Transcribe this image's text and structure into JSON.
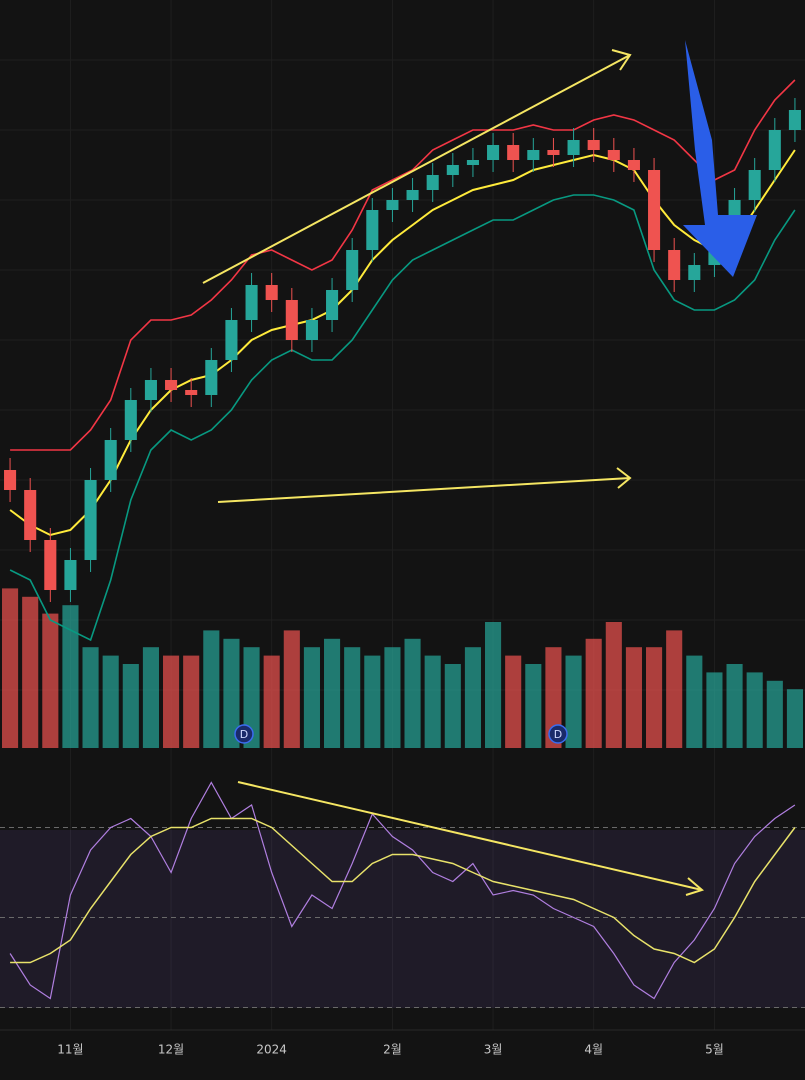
{
  "chart_data": [
    {
      "type": "candlestick",
      "categories": [
        null,
        null,
        null,
        "11월",
        null,
        null,
        null,
        null,
        "12월",
        null,
        null,
        null,
        null,
        "2024",
        null,
        null,
        null,
        null,
        null,
        "2월",
        null,
        null,
        null,
        null,
        "3월",
        null,
        null,
        null,
        null,
        "4월",
        null,
        null,
        null,
        null,
        null,
        "5월",
        null,
        null,
        null,
        null
      ],
      "open": [
        130,
        110,
        60,
        10,
        40,
        120,
        160,
        200,
        220,
        210,
        205,
        240,
        280,
        315,
        300,
        260,
        280,
        310,
        350,
        390,
        400,
        410,
        425,
        435,
        440,
        455,
        440,
        450,
        445,
        460,
        450,
        440,
        430,
        350,
        320,
        335,
        350,
        400,
        430,
        470
      ],
      "high": [
        142,
        122,
        72,
        52,
        132,
        172,
        212,
        232,
        232,
        222,
        252,
        292,
        327,
        327,
        312,
        292,
        322,
        362,
        402,
        412,
        422,
        437,
        447,
        452,
        467,
        467,
        462,
        462,
        472,
        472,
        462,
        452,
        442,
        362,
        347,
        362,
        412,
        442,
        482,
        502
      ],
      "low": [
        98,
        48,
        -2,
        -2,
        28,
        108,
        148,
        188,
        198,
        193,
        193,
        228,
        268,
        288,
        248,
        248,
        268,
        298,
        338,
        378,
        388,
        398,
        413,
        423,
        428,
        428,
        428,
        433,
        433,
        438,
        428,
        418,
        338,
        308,
        308,
        323,
        338,
        388,
        418,
        458
      ],
      "close": [
        110,
        60,
        10,
        40,
        120,
        160,
        200,
        220,
        210,
        205,
        240,
        280,
        315,
        300,
        260,
        280,
        310,
        350,
        390,
        400,
        410,
        425,
        435,
        440,
        455,
        440,
        450,
        445,
        460,
        450,
        440,
        430,
        350,
        320,
        335,
        350,
        400,
        430,
        470,
        490
      ],
      "up_color": "#26a69a",
      "down_color": "#ef5350",
      "bands": [
        {
          "color": "#f23645",
          "values": [
            150,
            150,
            150,
            150,
            170,
            200,
            260,
            280,
            280,
            285,
            300,
            320,
            345,
            350,
            340,
            330,
            340,
            370,
            410,
            420,
            430,
            450,
            460,
            470,
            470,
            470,
            475,
            470,
            470,
            480,
            485,
            480,
            470,
            460,
            440,
            420,
            430,
            470,
            500,
            520
          ]
        },
        {
          "color": "#ffeb3b",
          "values": [
            90,
            75,
            65,
            70,
            90,
            120,
            160,
            190,
            210,
            220,
            225,
            240,
            260,
            270,
            275,
            280,
            290,
            310,
            340,
            360,
            375,
            390,
            400,
            410,
            415,
            420,
            430,
            435,
            440,
            445,
            440,
            430,
            400,
            375,
            360,
            350,
            360,
            390,
            420,
            450
          ]
        },
        {
          "color": "#089981",
          "values": [
            30,
            20,
            -20,
            -30,
            -40,
            20,
            100,
            150,
            170,
            160,
            170,
            190,
            220,
            240,
            250,
            240,
            240,
            260,
            290,
            320,
            340,
            350,
            360,
            370,
            380,
            380,
            390,
            400,
            405,
            405,
            400,
            390,
            330,
            300,
            290,
            290,
            300,
            320,
            360,
            390
          ]
        }
      ],
      "ylim": [
        -60,
        600
      ],
      "grid": true
    },
    {
      "type": "bar",
      "values": [
        95,
        90,
        80,
        85,
        60,
        55,
        50,
        60,
        55,
        55,
        70,
        65,
        60,
        55,
        70,
        60,
        65,
        60,
        55,
        60,
        65,
        55,
        50,
        60,
        75,
        55,
        50,
        60,
        55,
        65,
        75,
        60,
        60,
        70,
        55,
        45,
        50,
        45,
        40,
        35
      ],
      "ylim": [
        0,
        100
      ],
      "markers": [
        "D",
        "D"
      ]
    },
    {
      "type": "line",
      "series": [
        {
          "color": "#b07fe0",
          "values": [
            42,
            35,
            32,
            55,
            65,
            70,
            72,
            68,
            60,
            72,
            80,
            72,
            75,
            60,
            48,
            55,
            52,
            62,
            73,
            68,
            65,
            60,
            58,
            62,
            55,
            56,
            55,
            52,
            50,
            48,
            42,
            35,
            32,
            40,
            45,
            52,
            62,
            68,
            72,
            75
          ]
        },
        {
          "color": "#e8e26a",
          "values": [
            40,
            40,
            42,
            45,
            52,
            58,
            64,
            68,
            70,
            70,
            72,
            72,
            72,
            70,
            66,
            62,
            58,
            58,
            62,
            64,
            64,
            63,
            62,
            60,
            58,
            57,
            56,
            55,
            54,
            52,
            50,
            46,
            43,
            42,
            40,
            43,
            50,
            58,
            64,
            70
          ]
        }
      ],
      "levels": [
        70,
        50,
        30
      ],
      "ylim": [
        25,
        85
      ]
    }
  ]
}
